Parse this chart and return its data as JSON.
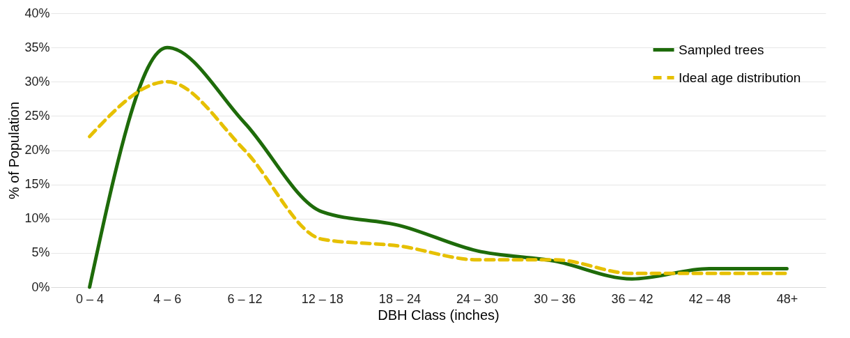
{
  "chart_data": {
    "type": "line",
    "xlabel": "DBH Class (inches)",
    "ylabel": "% of Population",
    "categories": [
      "0 – 4",
      "4 – 6",
      "6 – 12",
      "12 – 18",
      "18 – 24",
      "24 – 30",
      "30 – 36",
      "36 – 42",
      "42 – 48",
      "48+"
    ],
    "series": [
      {
        "name": "Sampled trees",
        "color": "#1e6b0a",
        "line_style": "solid",
        "values": [
          0,
          35,
          24,
          11,
          9,
          5.3,
          3.8,
          1.2,
          2.7,
          2.7
        ]
      },
      {
        "name": "Ideal age distribution",
        "color": "#e6c000",
        "line_style": "dashed",
        "values": [
          22,
          30,
          20,
          7,
          6,
          4,
          4,
          2,
          2,
          2
        ]
      }
    ],
    "ylim": [
      0,
      40
    ],
    "yticks": [
      {
        "value": 0,
        "label": "0%"
      },
      {
        "value": 5,
        "label": "5%"
      },
      {
        "value": 10,
        "label": "10%"
      },
      {
        "value": 15,
        "label": "15%"
      },
      {
        "value": 20,
        "label": "20%"
      },
      {
        "value": 25,
        "label": "25%"
      },
      {
        "value": 30,
        "label": "30%"
      },
      {
        "value": 35,
        "label": "35%"
      },
      {
        "value": 40,
        "label": "40%"
      }
    ],
    "grid": "y",
    "legend": "top right",
    "marker": "none"
  }
}
